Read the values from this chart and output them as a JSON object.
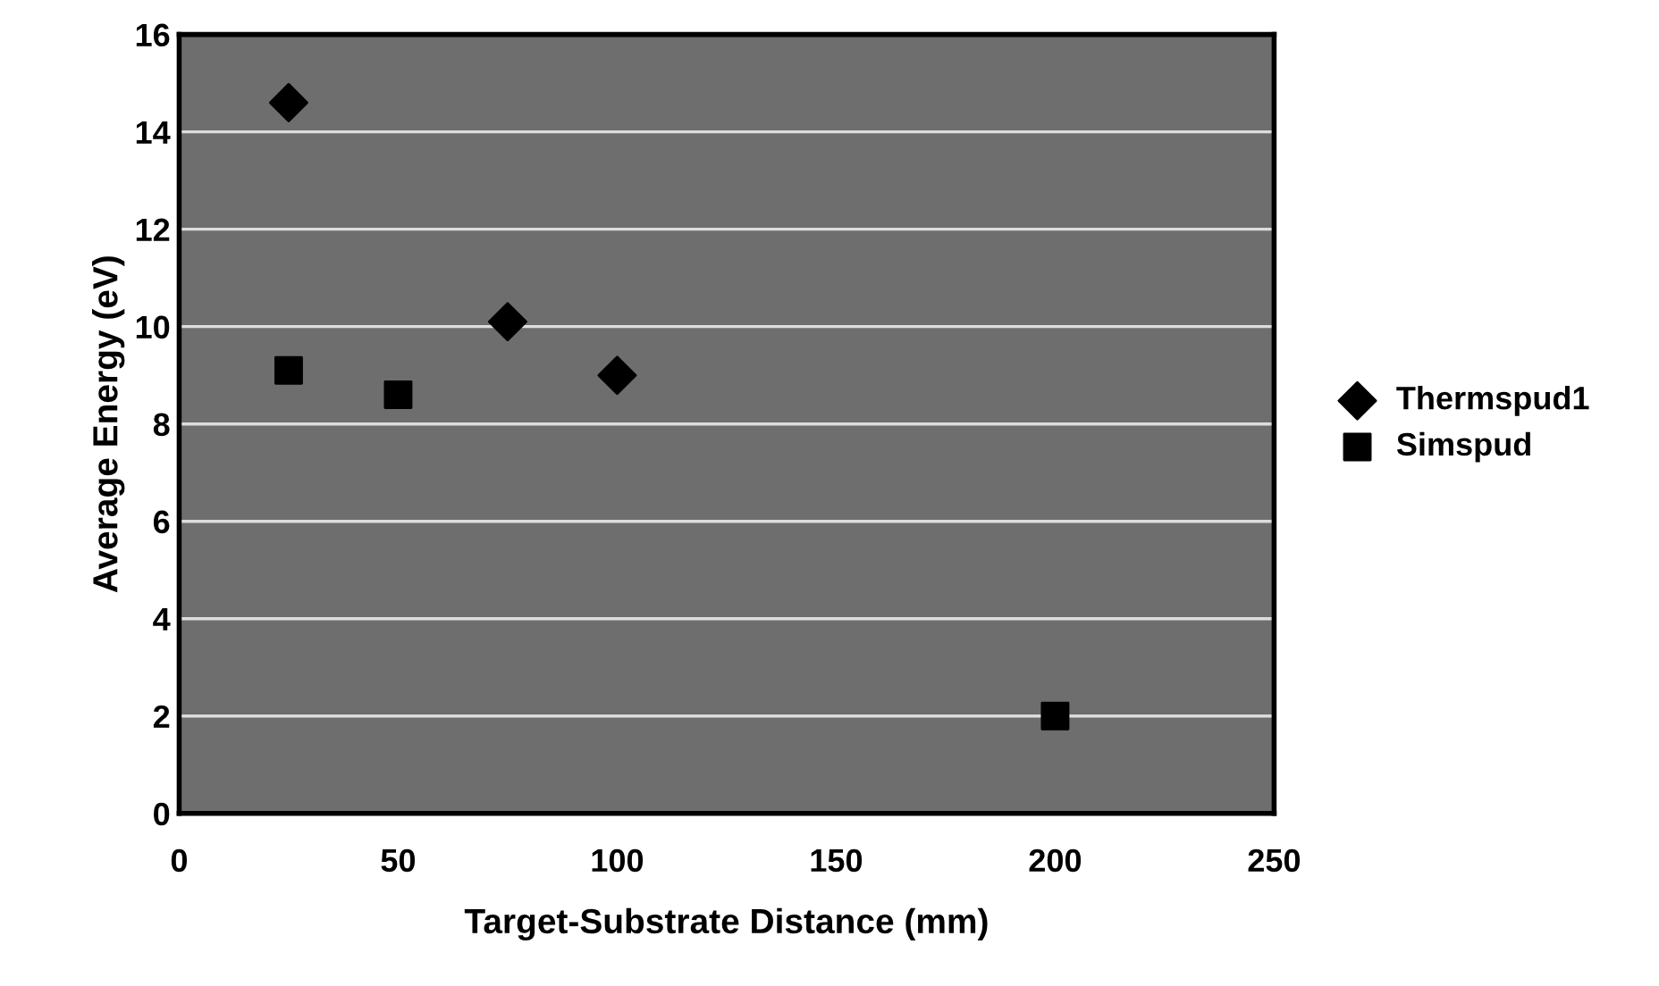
{
  "chart_data": {
    "type": "scatter",
    "xlabel": "Target-Substrate Distance (mm)",
    "ylabel": "Average Energy (eV)",
    "series": [
      {
        "name": "Thermspud1",
        "color": "#000000",
        "marker": "diamond",
        "x": [
          25,
          75,
          100
        ],
        "values": [
          14.6,
          10.1,
          9.0
        ]
      },
      {
        "name": "Simspud",
        "color": "#000000",
        "marker": "square",
        "x": [
          25,
          50,
          200
        ],
        "values": [
          9.1,
          8.6,
          2.0
        ]
      }
    ],
    "xlim": [
      0,
      250
    ],
    "xticks": [
      0,
      50,
      100,
      150,
      200,
      250
    ],
    "ylim": [
      0,
      16
    ],
    "yticks": [
      0,
      2,
      4,
      6,
      8,
      10,
      12,
      14,
      16
    ],
    "grid": "y",
    "legend": "right"
  }
}
